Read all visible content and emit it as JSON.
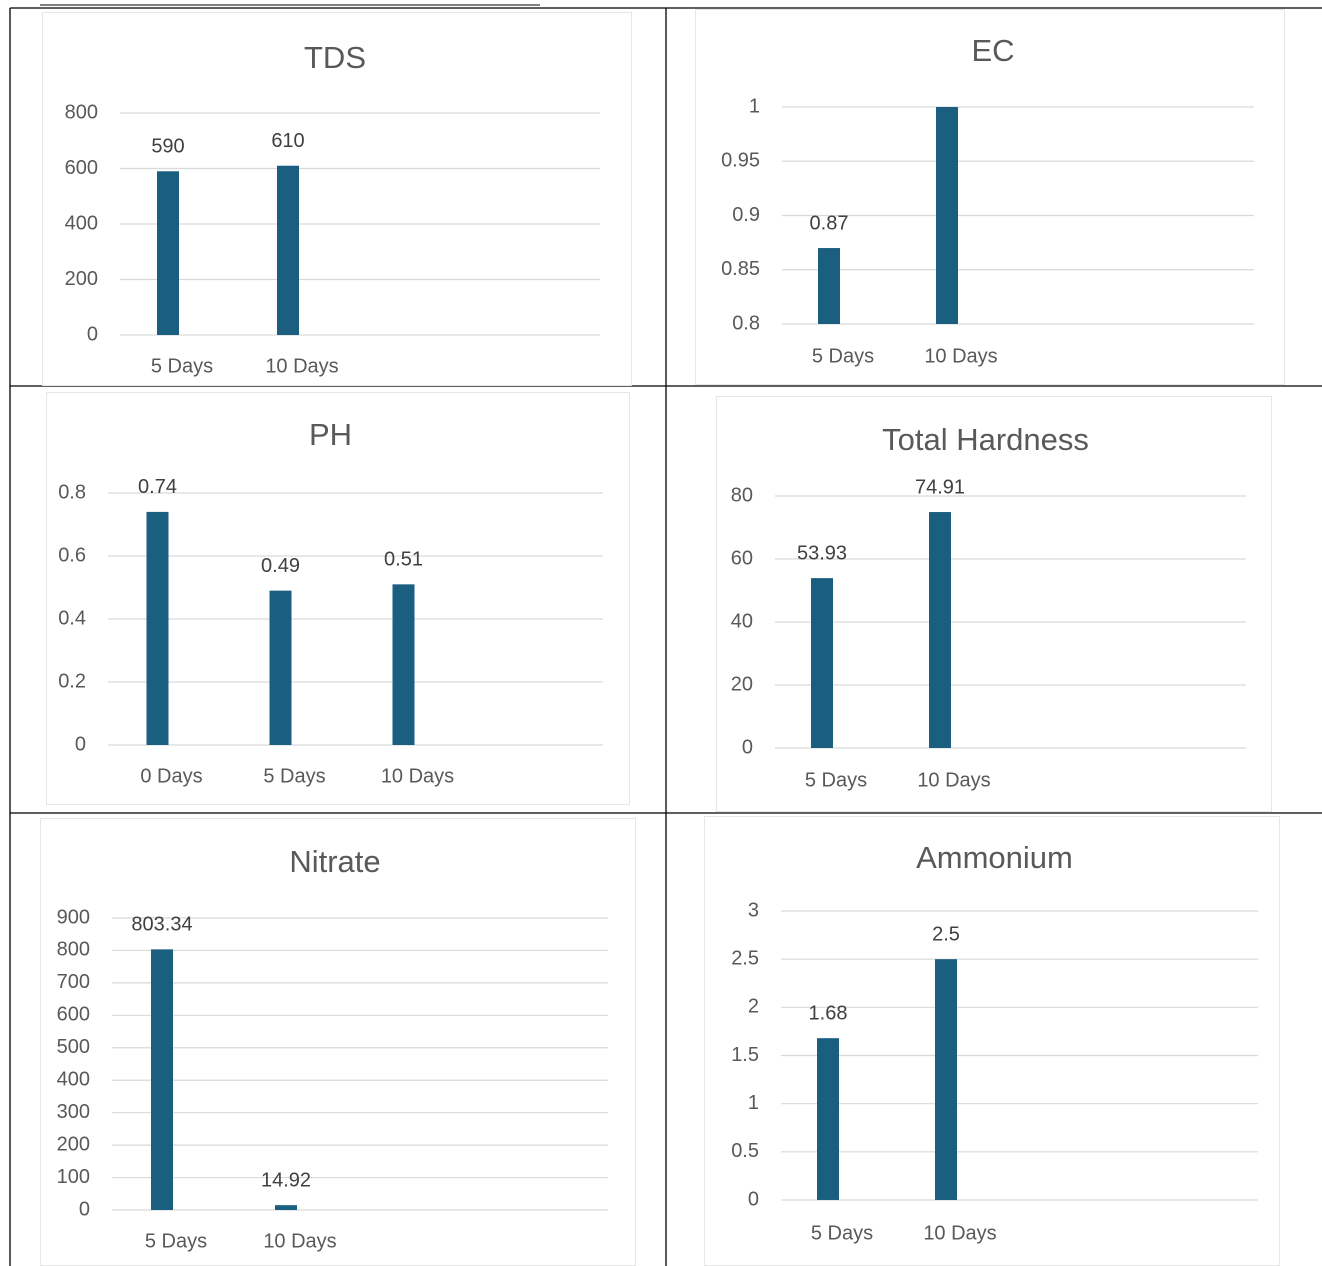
{
  "chart_data": [
    {
      "type": "bar",
      "title": "TDS",
      "categories": [
        "5 Days",
        "10 Days"
      ],
      "values": [
        590,
        610
      ],
      "data_labels": [
        "590",
        "610"
      ],
      "yticks": [
        0,
        200,
        400,
        600,
        800
      ],
      "ytick_labels": [
        "0",
        "200",
        "400",
        "600",
        "800"
      ],
      "ylim": [
        0,
        800
      ],
      "grid": true,
      "color": "#1a5e80"
    },
    {
      "type": "bar",
      "title": "EC",
      "categories": [
        "5 Days",
        "10 Days"
      ],
      "values": [
        0.87,
        1.0
      ],
      "data_labels": [
        "0.87",
        ""
      ],
      "yticks": [
        0.8,
        0.85,
        0.9,
        0.95,
        1
      ],
      "ytick_labels": [
        "0.8",
        "0.85",
        "0.9",
        "0.95",
        "1"
      ],
      "ylim": [
        0.8,
        1
      ],
      "grid": true,
      "color": "#1a5e80"
    },
    {
      "type": "bar",
      "title": "PH",
      "categories": [
        "0 Days",
        "5 Days",
        "10 Days"
      ],
      "values": [
        0.74,
        0.49,
        0.51
      ],
      "data_labels": [
        "0.74",
        "0.49",
        "0.51"
      ],
      "yticks": [
        0,
        0.2,
        0.4,
        0.6,
        0.8
      ],
      "ytick_labels": [
        "0",
        "0.2",
        "0.4",
        "0.6",
        "0.8"
      ],
      "ylim": [
        0,
        0.8
      ],
      "grid": true,
      "color": "#1a5e80"
    },
    {
      "type": "bar",
      "title": "Total Hardness",
      "categories": [
        "5 Days",
        "10 Days"
      ],
      "values": [
        53.93,
        74.91
      ],
      "data_labels": [
        "53.93",
        "74.91"
      ],
      "yticks": [
        0,
        20,
        40,
        60,
        80
      ],
      "ytick_labels": [
        "0",
        "20",
        "40",
        "60",
        "80"
      ],
      "ylim": [
        0,
        80
      ],
      "grid": true,
      "color": "#1a5e80"
    },
    {
      "type": "bar",
      "title": "Nitrate",
      "categories": [
        "5 Days",
        "10 Days"
      ],
      "values": [
        803.34,
        14.92
      ],
      "data_labels": [
        "803.34",
        "14.92"
      ],
      "yticks": [
        0,
        100,
        200,
        300,
        400,
        500,
        600,
        700,
        800,
        900
      ],
      "ytick_labels": [
        "0",
        "100",
        "200",
        "300",
        "400",
        "500",
        "600",
        "700",
        "800",
        "900"
      ],
      "ylim": [
        0,
        900
      ],
      "grid": true,
      "color": "#1a5e80"
    },
    {
      "type": "bar",
      "title": "Ammonium",
      "categories": [
        "5 Days",
        "10 Days"
      ],
      "values": [
        1.68,
        2.5
      ],
      "data_labels": [
        "1.68",
        "2.5"
      ],
      "yticks": [
        0,
        0.5,
        1,
        1.5,
        2,
        2.5,
        3
      ],
      "ytick_labels": [
        "0",
        "0.5",
        "1",
        "1.5",
        "2",
        "2.5",
        "3"
      ],
      "ylim": [
        0,
        3
      ],
      "grid": true,
      "color": "#1a5e80"
    }
  ]
}
